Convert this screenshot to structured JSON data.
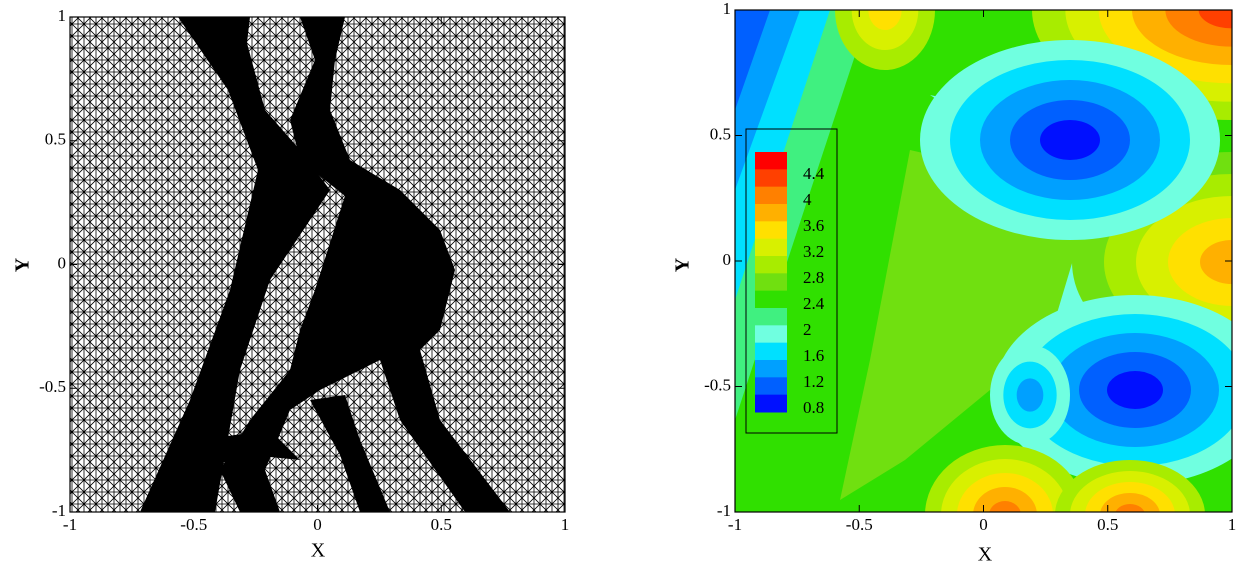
{
  "chart_data": [
    {
      "type": "mesh",
      "xlabel": "X",
      "ylabel": "Y",
      "xlim": [
        -1,
        1
      ],
      "ylim": [
        -1,
        1
      ],
      "xticks": [
        -1,
        -0.5,
        0,
        0.5,
        1
      ],
      "yticks": [
        -1,
        -0.5,
        0,
        0.5,
        1
      ],
      "color": "#000000"
    },
    {
      "type": "contour",
      "xlabel": "X",
      "ylabel": "Y",
      "xlim": [
        -1,
        1
      ],
      "ylim": [
        -1,
        1
      ],
      "xticks": [
        -1,
        -0.5,
        0,
        0.5,
        1
      ],
      "yticks": [
        -1,
        -0.5,
        0,
        0.5,
        1
      ],
      "legend": "upper left",
      "colorbar": {
        "labels": [
          4.4,
          4,
          3.6,
          3.2,
          2.8,
          2.4,
          2,
          1.6,
          1.2,
          0.8
        ],
        "colors": [
          "#ff0000",
          "#ff4000",
          "#ff8000",
          "#ffb000",
          "#ffe000",
          "#d8f000",
          "#a8ec00",
          "#70e010",
          "#30e000",
          "#40f080",
          "#70ffe0",
          "#00e0ff",
          "#00a0ff",
          "#0060ff",
          "#0010ff"
        ]
      }
    }
  ]
}
